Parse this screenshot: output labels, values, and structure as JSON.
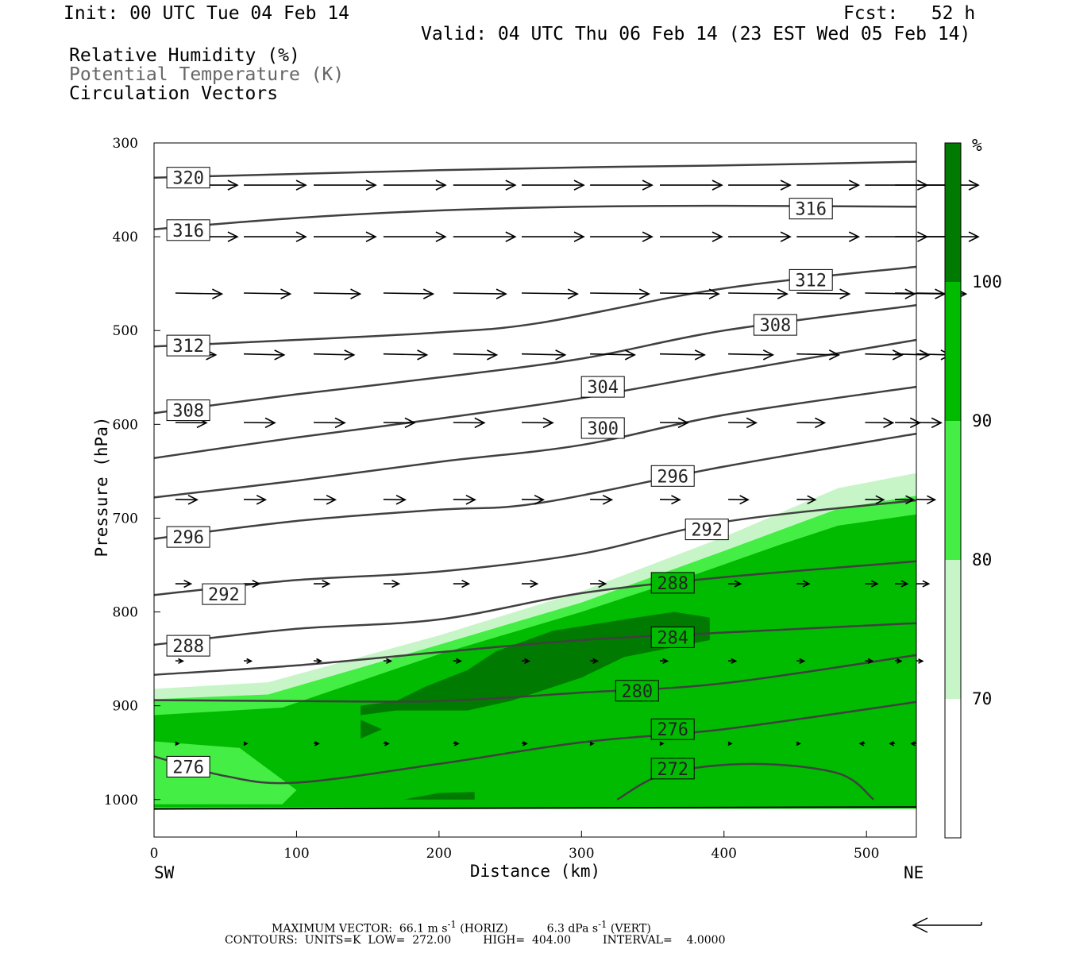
{
  "header": {
    "init": "Init: 00 UTC Tue 04 Feb 14",
    "fcst": "Fcst:   52 h",
    "valid": "Valid: 04 UTC Thu 06 Feb 14 (23 EST Wed 05 Feb 14)"
  },
  "fields": {
    "rh": "Relative Humidity (%)",
    "theta": "Potential Temperature (K)",
    "vectors": "Circulation Vectors"
  },
  "colors": {
    "rh_70_80": "#c8f5c8",
    "rh_80_90": "#44ee44",
    "rh_90_100": "#00bb00",
    "rh_100": "#007a00",
    "contour": "#404040"
  },
  "chart_data": {
    "type": "cross-section",
    "xlabel": "Distance (km)",
    "ylabel": "Pressure (hPa)",
    "x_ticks": [
      "0",
      "100",
      "200",
      "300",
      "400",
      "500"
    ],
    "y_ticks": [
      "300",
      "400",
      "500",
      "600",
      "700",
      "800",
      "900",
      "1000"
    ],
    "xlim": [
      0,
      535
    ],
    "ylim": [
      1040,
      300
    ],
    "left_end": "SW",
    "right_end": "NE",
    "colorbar": {
      "unit": "%",
      "ticks": [
        "70",
        "80",
        "90",
        "100"
      ],
      "levels": [
        70,
        80,
        90,
        100
      ]
    },
    "theta_contours": [
      {
        "value": 320,
        "x": [
          0,
          100,
          200,
          300,
          400,
          535
        ],
        "p": [
          337,
          333,
          329,
          326,
          324,
          320
        ]
      },
      {
        "value": 316,
        "x": [
          0,
          100,
          200,
          300,
          400,
          535
        ],
        "p": [
          392,
          380,
          372,
          368,
          367,
          368
        ]
      },
      {
        "value": 312,
        "x": [
          0,
          100,
          200,
          270,
          400,
          535
        ],
        "p": [
          517,
          510,
          502,
          492,
          455,
          432
        ]
      },
      {
        "value": 308,
        "x": [
          0,
          100,
          200,
          300,
          400,
          535
        ],
        "p": [
          588,
          568,
          550,
          530,
          500,
          473
        ]
      },
      {
        "value": 304,
        "x": [
          0,
          100,
          200,
          300,
          400,
          535
        ],
        "p": [
          636,
          614,
          594,
          572,
          545,
          510
        ]
      },
      {
        "value": 300,
        "x": [
          0,
          100,
          200,
          300,
          400,
          535
        ],
        "p": [
          678,
          660,
          640,
          622,
          590,
          560
        ]
      },
      {
        "value": 296,
        "x": [
          0,
          100,
          200,
          270,
          400,
          535
        ],
        "p": [
          722,
          703,
          691,
          684,
          645,
          610
        ]
      },
      {
        "value": 292,
        "x": [
          0,
          100,
          200,
          300,
          400,
          535
        ],
        "p": [
          782,
          766,
          757,
          738,
          704,
          681
        ]
      },
      {
        "value": 288,
        "x": [
          0,
          100,
          200,
          300,
          400,
          535
        ],
        "p": [
          835,
          818,
          808,
          780,
          763,
          746
        ]
      },
      {
        "value": 284,
        "x": [
          0,
          100,
          200,
          300,
          400,
          535
        ],
        "p": [
          867,
          857,
          843,
          830,
          822,
          812
        ]
      },
      {
        "value": 280,
        "x": [
          0,
          100,
          200,
          300,
          400,
          535
        ],
        "p": [
          894,
          895,
          895,
          886,
          876,
          846
        ]
      },
      {
        "value": 276,
        "x": [
          0,
          50,
          100,
          200,
          300,
          400,
          535
        ],
        "p": [
          954,
          975,
          982,
          962,
          939,
          925,
          896
        ]
      },
      {
        "value": 272,
        "x": [
          325,
          360,
          420,
          480,
          505
        ],
        "p": [
          1000,
          972,
          962,
          972,
          1000
        ]
      }
    ],
    "contour_labels": [
      {
        "text": "320",
        "x": 24,
        "p": 337
      },
      {
        "text": "316",
        "x": 24,
        "p": 393
      },
      {
        "text": "316",
        "x": 461,
        "p": 370
      },
      {
        "text": "312",
        "x": 24,
        "p": 516
      },
      {
        "text": "312",
        "x": 461,
        "p": 446
      },
      {
        "text": "308",
        "x": 24,
        "p": 585
      },
      {
        "text": "308",
        "x": 436,
        "p": 494
      },
      {
        "text": "304",
        "x": 315,
        "p": 560
      },
      {
        "text": "300",
        "x": 315,
        "p": 604
      },
      {
        "text": "296",
        "x": 24,
        "p": 720
      },
      {
        "text": "296",
        "x": 364,
        "p": 655
      },
      {
        "text": "292",
        "x": 49,
        "p": 781
      },
      {
        "text": "292",
        "x": 388,
        "p": 712
      },
      {
        "text": "288",
        "x": 24,
        "p": 836
      },
      {
        "text": "288",
        "x": 364,
        "p": 769
      },
      {
        "text": "284",
        "x": 364,
        "p": 827
      },
      {
        "text": "280",
        "x": 339,
        "p": 884
      },
      {
        "text": "276",
        "x": 24,
        "p": 965
      },
      {
        "text": "276",
        "x": 364,
        "p": 925
      },
      {
        "text": "272",
        "x": 364,
        "p": 967
      }
    ],
    "vector_rows": [
      {
        "p": 345,
        "speed": [
          1.0,
          1.0,
          1.0,
          1.0,
          1.0,
          1.0,
          1.0,
          1.0,
          1.0,
          1.0,
          1.0,
          1.0,
          1.0
        ],
        "w": 0
      },
      {
        "p": 400,
        "speed": [
          1.0,
          1.0,
          1.0,
          1.0,
          1.0,
          1.0,
          1.0,
          1.0,
          1.0,
          1.0,
          1.0,
          1.0,
          1.0
        ],
        "w": 0
      },
      {
        "p": 460,
        "speed": [
          0.75,
          0.75,
          0.75,
          0.8,
          0.85,
          0.9,
          0.95,
          0.95,
          0.95,
          0.85,
          0.8,
          0.8,
          0.8
        ],
        "w": 0.05
      },
      {
        "p": 525,
        "speed": [
          0.65,
          0.65,
          0.65,
          0.7,
          0.7,
          0.7,
          0.72,
          0.72,
          0.72,
          0.68,
          0.6,
          0.55,
          0.55
        ],
        "w": 0.05
      },
      {
        "p": 598,
        "speed": [
          0.5,
          0.5,
          0.5,
          0.5,
          0.5,
          0.5,
          0.5,
          0.45,
          0.45,
          0.45,
          0.45,
          0.4,
          0.4
        ],
        "w": 0.02
      },
      {
        "p": 680,
        "speed": [
          0.35,
          0.35,
          0.35,
          0.35,
          0.35,
          0.35,
          0.35,
          0.32,
          0.32,
          0.3,
          0.3,
          0.3,
          0.3
        ],
        "w": 0.02
      },
      {
        "p": 770,
        "speed": [
          0.25,
          0.25,
          0.25,
          0.25,
          0.25,
          0.25,
          0.25,
          0.22,
          0.2,
          0.2,
          0.2,
          0.2,
          0.2
        ],
        "w": 0
      },
      {
        "p": 852,
        "speed": [
          0.12,
          0.12,
          0.12,
          0.12,
          0.12,
          0.12,
          0.12,
          0.12,
          0.12,
          0.12,
          0.12,
          0.1,
          0.1
        ],
        "w": 0.02
      },
      {
        "p": 940,
        "speed": [
          0.05,
          0.05,
          0.08,
          0.08,
          0.08,
          0.08,
          0.05,
          0.05,
          0.05,
          0.05,
          -0.08,
          -0.08,
          -0.08
        ],
        "w": 0.02
      }
    ],
    "vector_x": [
      15,
      63,
      112,
      161,
      210,
      258,
      306,
      355,
      403,
      451,
      499,
      520,
      535
    ],
    "rh_regions": [
      {
        "level": "70-80",
        "x": [
          0,
          80,
          200,
          300,
          400,
          480,
          535,
          535,
          0
        ],
        "p": [
          882,
          875,
          825,
          778,
          720,
          668,
          652,
          1010,
          1010
        ]
      },
      {
        "level": "80-90",
        "x": [
          0,
          80,
          200,
          300,
          400,
          480,
          535,
          535,
          0
        ],
        "p": [
          893,
          888,
          835,
          790,
          735,
          690,
          676,
          1010,
          1010
        ]
      },
      {
        "level": "90-100",
        "x": [
          0,
          90,
          200,
          300,
          380,
          440,
          480,
          535,
          535,
          0
        ],
        "p": [
          910,
          902,
          845,
          800,
          760,
          728,
          708,
          696,
          1008,
          1008
        ]
      },
      {
        "level": ">100",
        "x": [
          145,
          170,
          190,
          220,
          240,
          280,
          330,
          365,
          390,
          390,
          330,
          300,
          250,
          220,
          170,
          145,
          145
        ],
        "p": [
          900,
          895,
          880,
          862,
          842,
          820,
          808,
          800,
          806,
          830,
          848,
          870,
          895,
          905,
          905,
          910,
          900
        ]
      },
      {
        "level": ">100",
        "x": [
          145,
          160,
          145
        ],
        "p": [
          915,
          925,
          935
        ]
      },
      {
        "level": ">100",
        "x": [
          175,
          200,
          225,
          225,
          175
        ],
        "p": [
          1000,
          993,
          992,
          1000,
          1000
        ]
      }
    ],
    "rh_light_patch": {
      "level": "80-90",
      "x": [
        0,
        60,
        100,
        90,
        0
      ],
      "p": [
        938,
        945,
        990,
        1005,
        1005
      ]
    }
  },
  "footer": {
    "maxvec_label": "MAXIMUM VECTOR:",
    "maxvec_horiz": "66.1 m s",
    "maxvec_horiz_unit": "(HORIZ)",
    "maxvec_vert": "6.3 dPa s",
    "maxvec_vert_unit": "(VERT)",
    "superscript": "-1",
    "contours": "CONTOURS:  UNITS=K  LOW=  272.00         HIGH=  404.00         INTERVAL=    4.0000"
  }
}
